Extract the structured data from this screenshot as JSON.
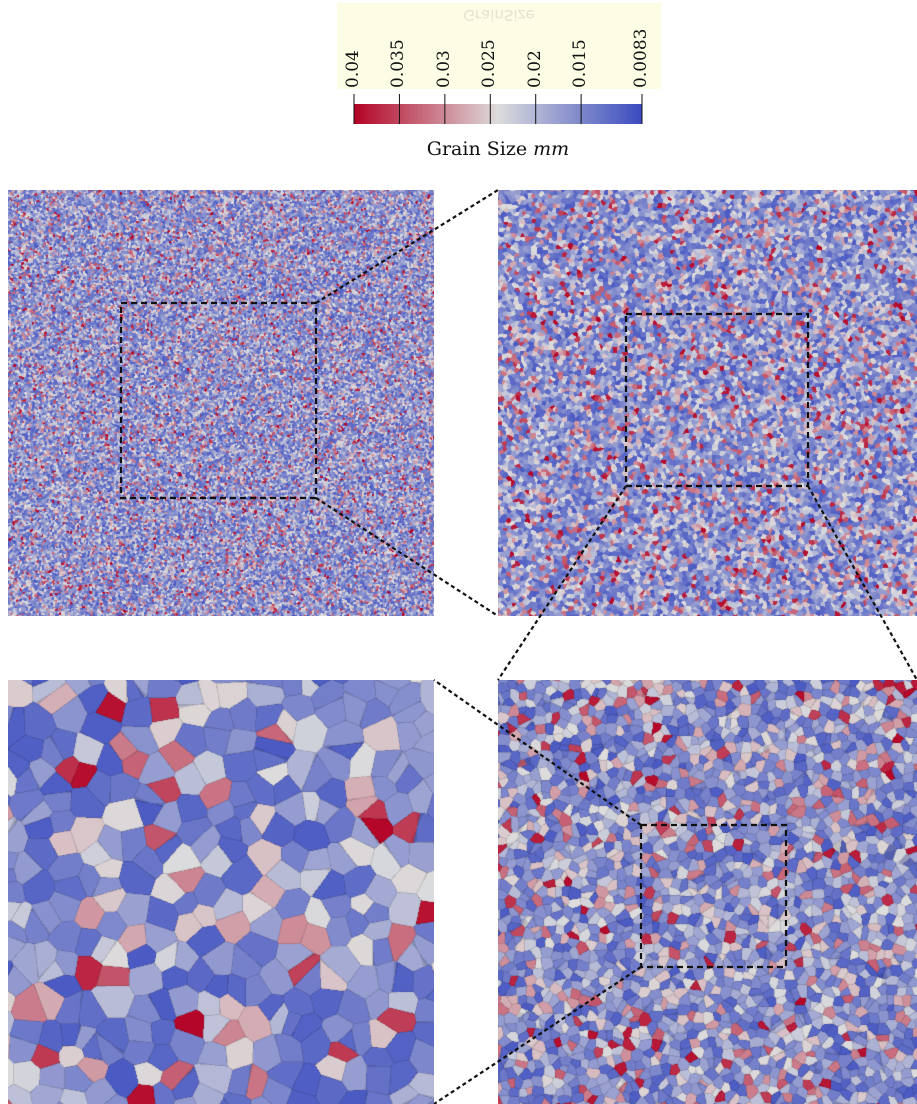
{
  "colorbar": {
    "mirrored_title": "GrainSize",
    "title_text": "Grain Size",
    "title_unit": "mm",
    "tick_labels": [
      "0.04",
      "0.035",
      "0.03",
      "0.025",
      "0.02",
      "0.015",
      "0.0083"
    ],
    "tick_values": [
      0.04,
      0.035,
      0.03,
      0.025,
      0.02,
      0.015,
      0.0083
    ],
    "range": [
      0.0083,
      0.04
    ],
    "colors": {
      "high": "#b40426",
      "mid": "#dddddd",
      "low": "#3b4cc0"
    }
  },
  "panels": [
    {
      "name": "overview",
      "zoom_level": 1
    },
    {
      "name": "zoom-2",
      "zoom_level": 2
    },
    {
      "name": "zoom-3",
      "zoom_level": 3
    },
    {
      "name": "zoom-4",
      "zoom_level": 4
    }
  ]
}
